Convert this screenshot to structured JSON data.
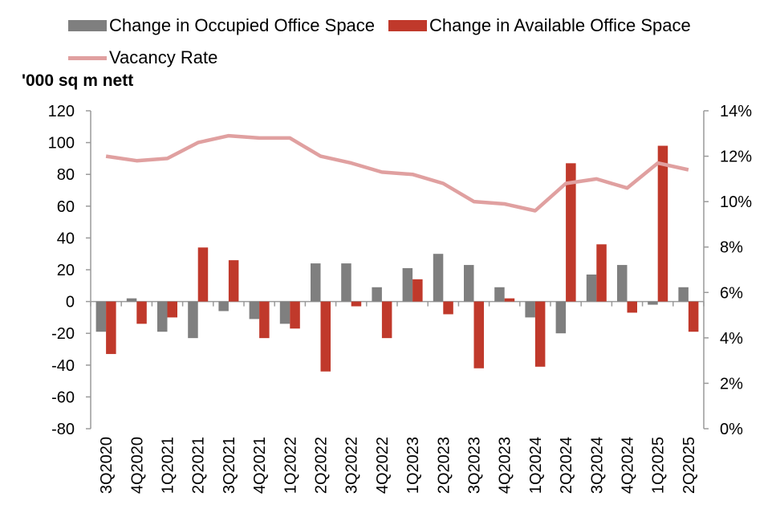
{
  "chart_data": {
    "type": "bar",
    "unit_label": "'000 sq m nett",
    "categories": [
      "3Q2020",
      "4Q2020",
      "1Q2021",
      "2Q2021",
      "3Q2021",
      "4Q2021",
      "1Q2022",
      "2Q2022",
      "3Q2022",
      "4Q2022",
      "1Q2023",
      "2Q2023",
      "3Q2023",
      "4Q2023",
      "1Q2024",
      "2Q2024",
      "3Q2024",
      "4Q2024",
      "1Q2025",
      "2Q2025"
    ],
    "series": [
      {
        "name": "Change in Occupied Office Space",
        "type": "bar",
        "axis": "left",
        "color": "#7f7f7f",
        "values": [
          -19,
          2,
          -19,
          -23,
          -6,
          -11,
          -14,
          24,
          24,
          9,
          21,
          30,
          23,
          9,
          -10,
          -20,
          17,
          23,
          -2,
          9
        ]
      },
      {
        "name": "Change in Available Office Space",
        "type": "bar",
        "axis": "left",
        "color": "#c0392b",
        "values": [
          -33,
          -14,
          -10,
          34,
          26,
          -23,
          -17,
          -44,
          -3,
          -23,
          14,
          -8,
          -42,
          2,
          -41,
          87,
          36,
          -7,
          98,
          -19
        ]
      },
      {
        "name": "Vacancy Rate",
        "type": "line",
        "axis": "right",
        "color": "#e0a0a0",
        "values": [
          12.0,
          11.8,
          11.9,
          12.6,
          12.9,
          12.8,
          12.8,
          12.0,
          11.7,
          11.3,
          11.2,
          10.8,
          10.0,
          9.9,
          9.6,
          10.8,
          11.0,
          10.6,
          11.7,
          11.4
        ]
      }
    ],
    "y_left": {
      "min": -80,
      "max": 120,
      "step": 20,
      "tick_labels": [
        "-80",
        "-60",
        "-40",
        "-20",
        "0",
        "20",
        "40",
        "60",
        "80",
        "100",
        "120"
      ]
    },
    "y_right": {
      "min": 0,
      "max": 14,
      "step": 2,
      "tick_labels": [
        "0%",
        "2%",
        "4%",
        "6%",
        "8%",
        "10%",
        "12%",
        "14%"
      ]
    },
    "legend_position": "top"
  }
}
